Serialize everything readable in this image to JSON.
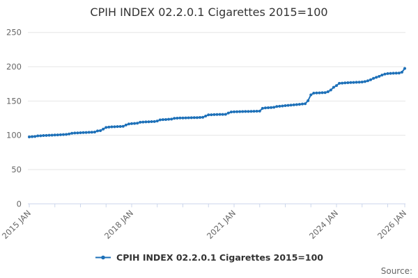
{
  "source": {
    "label": "Source:"
  },
  "colors": {
    "line": "#1d70b8",
    "grid": "#e6e6e6",
    "axis": "#ccd6eb",
    "tick_label": "#666666",
    "title_text": "#333333",
    "source_text": "#666666"
  },
  "chart_data": {
    "type": "line",
    "title": "CPIH INDEX 02.2.0.1 Cigarettes 2015=100",
    "xlabel": "",
    "ylabel": "",
    "ylim": [
      0,
      250
    ],
    "y_ticks": [
      0,
      50,
      100,
      150,
      200,
      250
    ],
    "grid": "horizontal",
    "legend_position": "bottom",
    "marker": "dot",
    "frequency": "monthly",
    "x_start": "2015 JAN",
    "x_end": "2026 JAN",
    "x_tick_month_interval": 9,
    "x_labels": [
      {
        "month": 0,
        "label": "2015 JAN"
      },
      {
        "month": 36,
        "label": "2018 JAN"
      },
      {
        "month": 72,
        "label": "2021 JAN"
      },
      {
        "month": 108,
        "label": "2024 JAN"
      },
      {
        "month": 132,
        "label": "2026 JAN"
      }
    ],
    "series": [
      {
        "name": "CPIH INDEX 02.2.0.1 Cigarettes 2015=100",
        "values": [
          97.6,
          98.0,
          98.3,
          99.1,
          99.3,
          99.6,
          99.8,
          100.0,
          100.2,
          100.4,
          100.6,
          100.8,
          101.0,
          101.3,
          101.9,
          103.0,
          103.3,
          103.5,
          103.7,
          103.9,
          104.1,
          104.3,
          104.5,
          104.7,
          106.4,
          106.8,
          109.0,
          111.5,
          112.0,
          112.3,
          112.5,
          112.7,
          112.9,
          113.1,
          115.0,
          116.5,
          117.0,
          117.3,
          117.6,
          119.0,
          119.3,
          119.5,
          119.7,
          119.9,
          120.1,
          120.8,
          122.5,
          122.8,
          123.0,
          123.3,
          123.6,
          124.8,
          125.0,
          125.2,
          125.3,
          125.4,
          125.5,
          125.6,
          125.7,
          125.8,
          126.0,
          126.3,
          128.0,
          129.8,
          130.0,
          130.2,
          130.3,
          130.4,
          130.5,
          130.6,
          132.5,
          134.0,
          134.2,
          134.4,
          134.5,
          134.6,
          134.7,
          134.8,
          134.9,
          135.0,
          135.1,
          135.3,
          139.3,
          140.0,
          140.2,
          140.5,
          140.9,
          142.0,
          142.4,
          142.8,
          143.2,
          143.6,
          144.0,
          144.4,
          144.8,
          145.2,
          145.6,
          146.0,
          150.5,
          159.0,
          161.5,
          161.7,
          161.9,
          162.1,
          162.3,
          163.5,
          166.0,
          170.0,
          172.5,
          175.8,
          176.1,
          176.4,
          176.7,
          176.9,
          177.1,
          177.3,
          177.5,
          177.7,
          178.3,
          179.5,
          181.0,
          183.0,
          184.5,
          186.0,
          187.8,
          189.2,
          190.0,
          190.3,
          190.5,
          190.6,
          190.8,
          192.0,
          197.5
        ]
      }
    ]
  }
}
